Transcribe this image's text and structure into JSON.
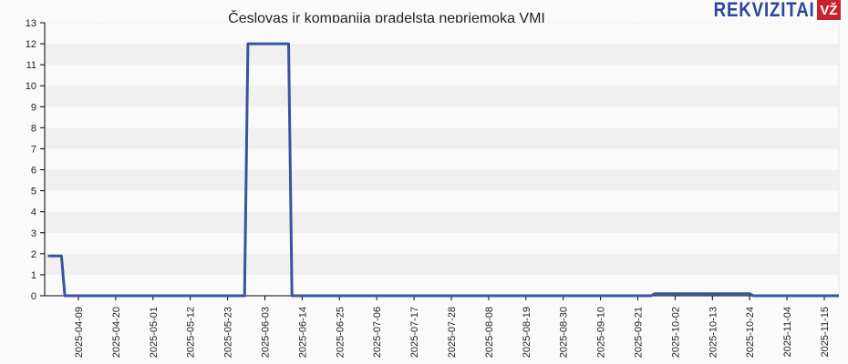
{
  "header": {
    "title": "Česlovas ir kompanija pradelsta nepriemoka VMI",
    "logo_text": "REKVIZITAI",
    "logo_badge": "VŽ"
  },
  "colors": {
    "line": "#3a52a0",
    "band_dark": "#f0f0f0",
    "band_light": "#fafafa",
    "logo_blue": "#2b45a0",
    "logo_red": "#c8212e"
  },
  "chart_data": {
    "type": "line",
    "title": "Česlovas ir kompanija pradelsta nepriemoka VMI",
    "xlabel": "",
    "ylabel": "",
    "ylim": [
      0,
      13
    ],
    "yticks": [
      0,
      1,
      2,
      3,
      4,
      5,
      6,
      7,
      8,
      9,
      10,
      11,
      12,
      13
    ],
    "xticks": [
      "2025-04-09",
      "2025-04-20",
      "2025-05-01",
      "2025-05-12",
      "2025-05-23",
      "2025-06-03",
      "2025-06-14",
      "2025-06-25",
      "2025-07-06",
      "2025-07-17",
      "2025-07-28",
      "2025-08-08",
      "2025-08-19",
      "2025-08-30",
      "2025-09-10",
      "2025-09-21",
      "2025-10-02",
      "2025-10-13",
      "2025-10-24",
      "2025-11-04",
      "2025-11-15"
    ],
    "grid": "horizontal alternating bands",
    "legend": "none",
    "series": [
      {
        "name": "Pradelsta nepriemoka VMI",
        "points": [
          {
            "x": "2025-03-31",
            "y": 1.9
          },
          {
            "x": "2025-04-04",
            "y": 1.9
          },
          {
            "x": "2025-04-05",
            "y": 0
          },
          {
            "x": "2025-05-28",
            "y": 0
          },
          {
            "x": "2025-05-29",
            "y": 12
          },
          {
            "x": "2025-06-10",
            "y": 12
          },
          {
            "x": "2025-06-11",
            "y": 0
          },
          {
            "x": "2025-09-25",
            "y": 0
          },
          {
            "x": "2025-09-26",
            "y": 0.1
          },
          {
            "x": "2025-10-24",
            "y": 0.1
          },
          {
            "x": "2025-10-25",
            "y": 0
          },
          {
            "x": "2025-11-22",
            "y": 0
          }
        ]
      }
    ]
  }
}
